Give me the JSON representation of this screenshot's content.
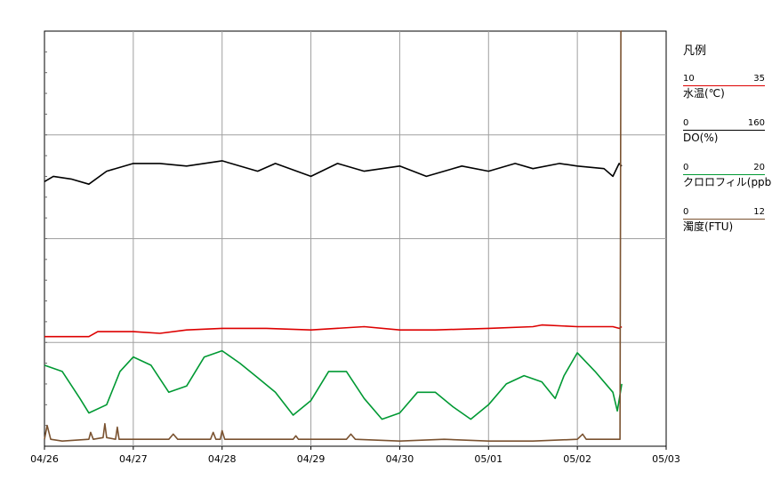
{
  "chart_data": {
    "type": "line",
    "x_tick_labels": [
      "04/26",
      "04/27",
      "04/28",
      "04/29",
      "04/30",
      "05/01",
      "05/02",
      "05/03"
    ],
    "xlim": [
      "04/26",
      "05/03"
    ],
    "grid": true,
    "legend_placement": "right",
    "legend": {
      "title": "凡例",
      "entries": [
        {
          "label": "水温(℃)",
          "min": "10",
          "max": "35",
          "color": "#dd0000"
        },
        {
          "label": "DO(%)",
          "min": "0",
          "max": "160",
          "color": "#000000"
        },
        {
          "label": "クロロフィル(ppb)",
          "min": "0",
          "max": "20",
          "color": "#009933"
        },
        {
          "label": "濁度(FTU)",
          "min": "0",
          "max": "12",
          "color": "#7a5230"
        }
      ]
    },
    "series": [
      {
        "name": "水温(℃)",
        "color": "#dd0000",
        "x_days": [
          0,
          0.5,
          0.6,
          1.0,
          1.3,
          1.6,
          2.0,
          2.5,
          3.0,
          3.6,
          4.0,
          4.4,
          5.0,
          5.5,
          5.6,
          6.0,
          6.4,
          6.47,
          6.5
        ],
        "y": [
          16.6,
          16.6,
          16.9,
          16.9,
          16.8,
          17.0,
          17.1,
          17.1,
          17.0,
          17.2,
          17.0,
          17.0,
          17.1,
          17.2,
          17.3,
          17.2,
          17.2,
          17.1,
          17.2
        ],
        "ylim": [
          10,
          35
        ]
      },
      {
        "name": "DO(%)",
        "color": "#000000",
        "x_days": [
          0,
          0.1,
          0.3,
          0.5,
          0.7,
          1.0,
          1.3,
          1.6,
          2.0,
          2.4,
          2.6,
          3.0,
          3.3,
          3.6,
          4.0,
          4.3,
          4.7,
          5.0,
          5.3,
          5.5,
          5.8,
          6.0,
          6.3,
          6.4,
          6.47,
          6.5
        ],
        "y": [
          102,
          104,
          103,
          101,
          106,
          109,
          109,
          108,
          110,
          106,
          109,
          104,
          109,
          106,
          108,
          104,
          108,
          106,
          109,
          107,
          109,
          108,
          107,
          104,
          109,
          108
        ],
        "ylim": [
          0,
          160
        ]
      },
      {
        "name": "クロロフィル(ppb)",
        "color": "#009933",
        "x_days": [
          0,
          0.2,
          0.4,
          0.5,
          0.7,
          0.85,
          1.0,
          1.2,
          1.4,
          1.6,
          1.8,
          2.0,
          2.2,
          2.4,
          2.6,
          2.8,
          3.0,
          3.2,
          3.4,
          3.6,
          3.8,
          4.0,
          4.2,
          4.4,
          4.6,
          4.8,
          5.0,
          5.2,
          5.4,
          5.6,
          5.75,
          5.85,
          6.0,
          6.2,
          6.4,
          6.45,
          6.5
        ],
        "y": [
          3.9,
          3.6,
          2.3,
          1.6,
          2.0,
          3.6,
          4.3,
          3.9,
          2.6,
          2.9,
          4.3,
          4.6,
          4.0,
          3.3,
          2.6,
          1.5,
          2.2,
          3.6,
          3.6,
          2.3,
          1.3,
          1.6,
          2.6,
          2.6,
          1.9,
          1.3,
          2.0,
          3.0,
          3.4,
          3.1,
          2.3,
          3.4,
          4.5,
          3.6,
          2.6,
          1.7,
          3.0
        ],
        "ylim": [
          0,
          20
        ]
      },
      {
        "name": "濁度(FTU)",
        "color": "#7a5230",
        "x_days": [
          0,
          0.03,
          0.07,
          0.2,
          0.5,
          0.52,
          0.55,
          0.66,
          0.68,
          0.7,
          0.8,
          0.82,
          0.84,
          1.4,
          1.45,
          1.5,
          1.87,
          1.9,
          1.93,
          1.98,
          2.0,
          2.03,
          2.8,
          2.83,
          2.86,
          3.4,
          3.45,
          3.5,
          4.0,
          4.5,
          5.0,
          5.5,
          6.0,
          6.06,
          6.1,
          6.48,
          6.49,
          6.5
        ],
        "y": [
          0.2,
          0.6,
          0.2,
          0.15,
          0.2,
          0.4,
          0.2,
          0.25,
          0.65,
          0.25,
          0.2,
          0.55,
          0.2,
          0.2,
          0.35,
          0.2,
          0.2,
          0.4,
          0.2,
          0.2,
          0.45,
          0.2,
          0.2,
          0.3,
          0.2,
          0.2,
          0.35,
          0.2,
          0.15,
          0.2,
          0.15,
          0.15,
          0.2,
          0.35,
          0.2,
          0.2,
          12,
          12
        ],
        "ylim": [
          0,
          12
        ]
      }
    ]
  }
}
